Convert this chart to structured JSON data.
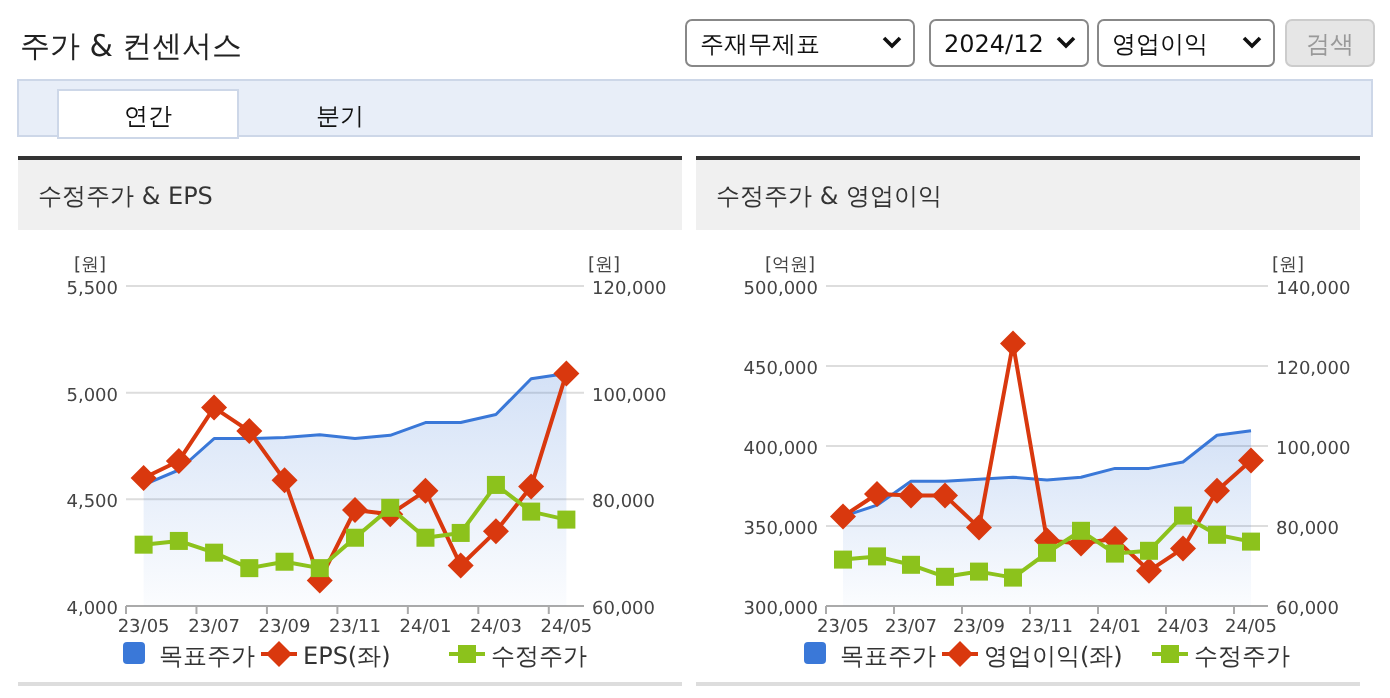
{
  "chart_data": [
    {
      "type": "other",
      "title": "주가 & 컨센서스",
      "annotations": [
        "주재무제표",
        "2024/12",
        "영업이익",
        "검색",
        "연간",
        "분기"
      ]
    },
    {
      "type": "line",
      "title": "수정주가 & EPS",
      "ylabel": "[원]",
      "y2label": "[원]",
      "grid": "y",
      "legend": "bottom",
      "categories": [
        "23/05",
        null,
        "23/07",
        null,
        "23/09",
        null,
        "23/11",
        null,
        "24/01",
        null,
        "24/03",
        null,
        "24/05"
      ],
      "ylim": [
        4000,
        5500
      ],
      "yticks": [
        {
          "value": 4000,
          "label": "4,000"
        },
        {
          "value": 4500,
          "label": "4,500"
        },
        {
          "value": 5000,
          "label": "5,000"
        },
        {
          "value": 5500,
          "label": "5,500"
        }
      ],
      "y2lim": [
        60000,
        120000
      ],
      "y2ticks": [
        {
          "value": 60000,
          "label": "60,000"
        },
        {
          "value": 80000,
          "label": "80,000"
        },
        {
          "value": 100000,
          "label": "100,000"
        },
        {
          "value": 120000,
          "label": "120,000"
        }
      ],
      "series": [
        {
          "name": "목표주가",
          "type": "area",
          "axis": "y2",
          "color": "#3a78d8",
          "marker": "none",
          "values": [
            82700,
            85500,
            91400,
            91400,
            91600,
            92100,
            91400,
            92000,
            94400,
            94400,
            95900,
            102600,
            103600
          ]
        },
        {
          "name": "EPS(좌)",
          "type": "line",
          "axis": "y",
          "color": "#d9380e",
          "marker": "diamond",
          "values": [
            4600,
            4680,
            4930,
            4820,
            4590,
            4120,
            4450,
            4430,
            4540,
            4190,
            4350,
            4560,
            5090
          ]
        },
        {
          "name": "수정주가",
          "type": "line",
          "axis": "y2",
          "color": "#8cc21c",
          "marker": "square",
          "values": [
            71500,
            72200,
            70000,
            67100,
            68300,
            67100,
            72800,
            78400,
            72800,
            73700,
            82700,
            77700,
            76200
          ]
        }
      ]
    },
    {
      "type": "line",
      "title": "수정주가 & 영업이익",
      "ylabel": "[억원]",
      "y2label": "[원]",
      "grid": "y",
      "legend": "bottom",
      "categories": [
        "23/05",
        null,
        "23/07",
        null,
        "23/09",
        null,
        "23/11",
        null,
        "24/01",
        null,
        "24/03",
        null,
        "24/05"
      ],
      "ylim": [
        300000,
        500000
      ],
      "yticks": [
        {
          "value": 300000,
          "label": "300,000"
        },
        {
          "value": 350000,
          "label": "350,000"
        },
        {
          "value": 400000,
          "label": "400,000"
        },
        {
          "value": 450000,
          "label": "450,000"
        },
        {
          "value": 500000,
          "label": "500,000"
        }
      ],
      "y2lim": [
        60000,
        140000
      ],
      "y2ticks": [
        {
          "value": 60000,
          "label": "60,000"
        },
        {
          "value": 80000,
          "label": "80,000"
        },
        {
          "value": 100000,
          "label": "100,000"
        },
        {
          "value": 120000,
          "label": "120,000"
        },
        {
          "value": 140000,
          "label": "140,000"
        }
      ],
      "series": [
        {
          "name": "목표주가",
          "type": "area",
          "axis": "y2",
          "color": "#3a78d8",
          "marker": "none",
          "values": [
            82400,
            85200,
            91200,
            91200,
            91700,
            92200,
            91500,
            92200,
            94400,
            94400,
            96000,
            102700,
            103800
          ]
        },
        {
          "name": "영업이익(좌)",
          "type": "line",
          "axis": "y",
          "color": "#d9380e",
          "marker": "diamond",
          "values": [
            356000,
            370000,
            369000,
            369000,
            349000,
            464000,
            341000,
            339000,
            342000,
            322000,
            336000,
            372000,
            391000
          ]
        },
        {
          "name": "수정주가",
          "type": "line",
          "axis": "y2",
          "color": "#8cc21c",
          "marker": "square",
          "values": [
            71600,
            72400,
            70300,
            67300,
            68600,
            67100,
            73300,
            78800,
            73100,
            73800,
            82600,
            77800,
            76100
          ]
        }
      ]
    }
  ]
}
